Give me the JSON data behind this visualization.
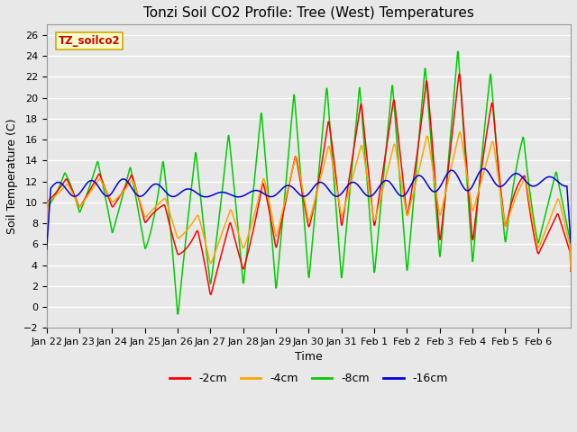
{
  "title": "Tonzi Soil CO2 Profile: Tree (West) Temperatures",
  "xlabel": "Time",
  "ylabel": "Soil Temperature (C)",
  "ylim": [
    -2,
    27
  ],
  "yticks": [
    -2,
    0,
    2,
    4,
    6,
    8,
    10,
    12,
    14,
    16,
    18,
    20,
    22,
    24,
    26
  ],
  "background_color": "#e8e8e8",
  "plot_bg_color": "#e8e8e8",
  "grid_color": "#ffffff",
  "legend_label": "TZ_soilco2",
  "legend_box_color": "#ffffcc",
  "legend_box_edge": "#ccaa00",
  "series_labels": [
    "-2cm",
    "-4cm",
    "-8cm",
    "-16cm"
  ],
  "series_colors": [
    "#ff0000",
    "#ffa500",
    "#00cc00",
    "#0000dd"
  ],
  "line_width": 1.1,
  "x_tick_labels": [
    "Jan 22",
    "Jan 23",
    "Jan 24",
    "Jan 25",
    "Jan 26",
    "Jan 27",
    "Jan 28",
    "Jan 29",
    "Jan 30",
    "Jan 31",
    "Feb 1",
    "Feb 2",
    "Feb 3",
    "Feb 4",
    "Feb 5",
    "Feb 6"
  ],
  "title_fontsize": 11,
  "axis_fontsize": 9,
  "tick_fontsize": 8
}
